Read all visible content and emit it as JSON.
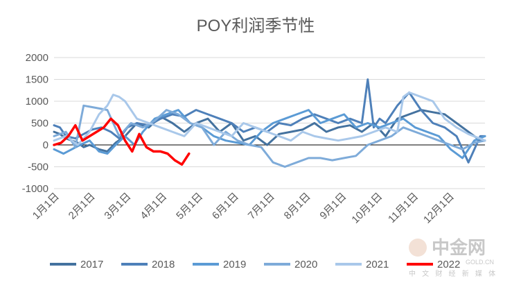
{
  "chart_data": {
    "type": "line",
    "title": "POY利润季节性",
    "xlabel": "",
    "ylabel": "",
    "ylim": [
      -1000,
      2000
    ],
    "yticks": [
      "2000",
      "1500",
      "1000",
      "500",
      "0",
      "-500",
      "-1000"
    ],
    "x_tick_labels": [
      "1月1日",
      "2月1日",
      "3月1日",
      "4月1日",
      "5月1日",
      "6月1日",
      "7月1日",
      "8月1日",
      "9月1日",
      "10月1日",
      "11月1日",
      "12月1日"
    ],
    "grid": true,
    "legend_position": "bottom",
    "colors": {
      "2017": "#44729f",
      "2018": "#4e80b9",
      "2019": "#5b9bd5",
      "2020": "#7eabd9",
      "2021": "#a9c8ea",
      "2022": "#ff0000",
      "grid": "#d9d9d9",
      "axis": "#595959"
    },
    "series": [
      {
        "name": "2017",
        "x_days": [
          0,
          5,
          10,
          15,
          20,
          25,
          30,
          38,
          45,
          52,
          60,
          70,
          80,
          90,
          100,
          110,
          120,
          130,
          140,
          150,
          160,
          170,
          180,
          190,
          200,
          210,
          220,
          230,
          240,
          250,
          260,
          270,
          280,
          290,
          300,
          310,
          320,
          330,
          340,
          350,
          360,
          364
        ],
        "values": [
          300,
          250,
          150,
          100,
          50,
          -50,
          0,
          -100,
          -150,
          50,
          200,
          500,
          400,
          650,
          500,
          300,
          500,
          600,
          300,
          500,
          100,
          200,
          0,
          250,
          300,
          350,
          500,
          300,
          400,
          450,
          300,
          500,
          200,
          600,
          700,
          800,
          750,
          700,
          500,
          300,
          100,
          100
        ]
      },
      {
        "name": "2018",
        "x_days": [
          0,
          5,
          10,
          18,
          25,
          32,
          40,
          48,
          55,
          62,
          70,
          80,
          90,
          100,
          110,
          120,
          130,
          140,
          150,
          160,
          170,
          180,
          190,
          200,
          210,
          220,
          230,
          240,
          250,
          260,
          265,
          270,
          275,
          280,
          290,
          300,
          310,
          320,
          330,
          340,
          350,
          360,
          364
        ],
        "values": [
          450,
          400,
          200,
          150,
          250,
          350,
          400,
          300,
          150,
          400,
          500,
          450,
          600,
          700,
          650,
          800,
          700,
          600,
          500,
          300,
          400,
          300,
          500,
          450,
          600,
          700,
          600,
          500,
          600,
          500,
          1500,
          400,
          600,
          500,
          900,
          1200,
          800,
          500,
          400,
          200,
          -400,
          200,
          200
        ]
      },
      {
        "name": "2019",
        "x_days": [
          0,
          8,
          15,
          22,
          30,
          38,
          45,
          52,
          60,
          68,
          75,
          85,
          95,
          105,
          115,
          125,
          135,
          145,
          155,
          165,
          175,
          185,
          195,
          205,
          215,
          225,
          235,
          245,
          255,
          265,
          275,
          285,
          295,
          305,
          315,
          325,
          335,
          345,
          355,
          364
        ],
        "values": [
          -100,
          -200,
          -100,
          0,
          100,
          -150,
          -200,
          0,
          200,
          0,
          300,
          600,
          700,
          800,
          500,
          400,
          200,
          100,
          50,
          0,
          300,
          500,
          600,
          700,
          800,
          500,
          600,
          700,
          400,
          500,
          400,
          500,
          600,
          400,
          300,
          200,
          -100,
          -300,
          100,
          200
        ]
      },
      {
        "name": "2020",
        "x_days": [
          0,
          10,
          18,
          25,
          35,
          45,
          55,
          65,
          75,
          85,
          95,
          105,
          115,
          125,
          135,
          145,
          155,
          165,
          175,
          185,
          195,
          205,
          215,
          225,
          235,
          245,
          255,
          265,
          275,
          285,
          295,
          305,
          315,
          325,
          335,
          345,
          355,
          364
        ],
        "values": [
          200,
          300,
          -50,
          900,
          850,
          800,
          200,
          500,
          400,
          550,
          800,
          700,
          500,
          400,
          0,
          300,
          100,
          0,
          -50,
          -400,
          -500,
          -400,
          -300,
          -300,
          -350,
          -300,
          -250,
          0,
          100,
          200,
          400,
          300,
          200,
          100,
          0,
          -100,
          50,
          100
        ]
      },
      {
        "name": "2021",
        "x_days": [
          0,
          10,
          20,
          30,
          38,
          45,
          50,
          55,
          60,
          65,
          70,
          80,
          90,
          100,
          110,
          120,
          130,
          140,
          150,
          160,
          170,
          180,
          190,
          200,
          210,
          220,
          230,
          240,
          250,
          260,
          270,
          280,
          290,
          295,
          300,
          310,
          320,
          330,
          340,
          350,
          364
        ],
        "values": [
          100,
          200,
          0,
          300,
          700,
          900,
          1150,
          1100,
          1000,
          800,
          600,
          500,
          400,
          300,
          200,
          500,
          400,
          300,
          200,
          500,
          400,
          300,
          200,
          100,
          300,
          200,
          150,
          100,
          150,
          200,
          300,
          400,
          300,
          1100,
          1200,
          1100,
          1000,
          600,
          400,
          250,
          100
        ]
      },
      {
        "name": "2022",
        "x_days": [
          0,
          6,
          12,
          18,
          24,
          30,
          36,
          42,
          48,
          54,
          60,
          66,
          72,
          78,
          84,
          90,
          96,
          102,
          108,
          114
        ],
        "values": [
          0,
          50,
          200,
          450,
          100,
          200,
          300,
          400,
          600,
          450,
          100,
          -150,
          250,
          -50,
          -150,
          -150,
          -200,
          -350,
          -450,
          -200
        ]
      }
    ]
  },
  "watermark": {
    "brand": "中金网",
    "tagline": "中 文 财 经 新 媒 体",
    "url": "GOLD.CN"
  }
}
